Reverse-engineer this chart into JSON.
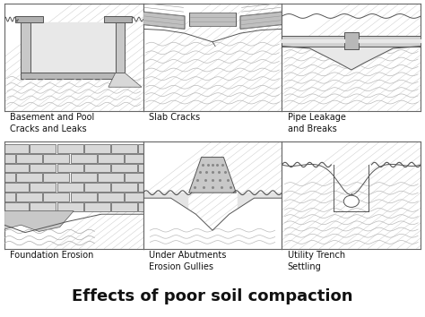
{
  "title": "Effects of poor soil compaction",
  "title_fontsize": 13,
  "title_fontweight": "bold",
  "background_color": "#ffffff",
  "border_color": "#666666",
  "labels": [
    "Basement and Pool\nCracks and Leaks",
    "Slab Cracks",
    "Pipe Leakage\nand Breaks",
    "Foundation Erosion",
    "Under Abutments\nErosion Gullies",
    "Utility Trench\nSettling"
  ],
  "grid_rows": 2,
  "grid_cols": 3,
  "fig_width": 4.74,
  "fig_height": 3.54,
  "label_fontsize": 7.0,
  "cell_bg": "#ffffff",
  "lc": "#555555",
  "hatch_color": "#aaaaaa",
  "fill_gray": "#d0d0d0",
  "fill_light": "#e8e8e8"
}
